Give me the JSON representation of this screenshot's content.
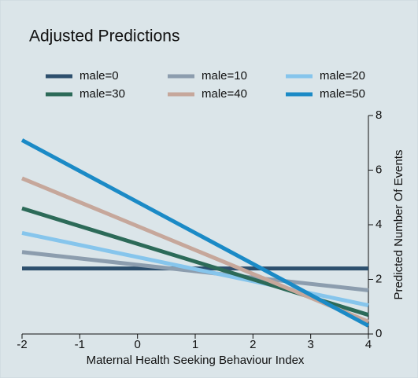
{
  "chart_data": {
    "type": "line",
    "title": "Adjusted Predictions",
    "x_label": "Maternal Health Seeking Behaviour Index",
    "y_label": "Predicted Number Of Events",
    "x": [
      -2,
      4
    ],
    "series": [
      {
        "name": "male=0",
        "color": "#2d4f6d",
        "values": [
          2.4,
          2.4
        ]
      },
      {
        "name": "male=10",
        "color": "#8c9dae",
        "values": [
          3.0,
          1.6
        ]
      },
      {
        "name": "male=20",
        "color": "#86c5ec",
        "values": [
          3.7,
          1.05
        ]
      },
      {
        "name": "male=30",
        "color": "#2c6a58",
        "values": [
          4.6,
          0.7
        ]
      },
      {
        "name": "male=40",
        "color": "#c6a79b",
        "values": [
          5.7,
          0.45
        ]
      },
      {
        "name": "male=50",
        "color": "#1b8ac6",
        "values": [
          7.1,
          0.3
        ]
      }
    ],
    "xlim": [
      -2,
      4
    ],
    "xticks": [
      -2,
      -1,
      0,
      1,
      2,
      3,
      4
    ],
    "ylim": [
      0,
      8
    ],
    "yticks": [
      0,
      2,
      4,
      6,
      8
    ],
    "legend": "top"
  }
}
